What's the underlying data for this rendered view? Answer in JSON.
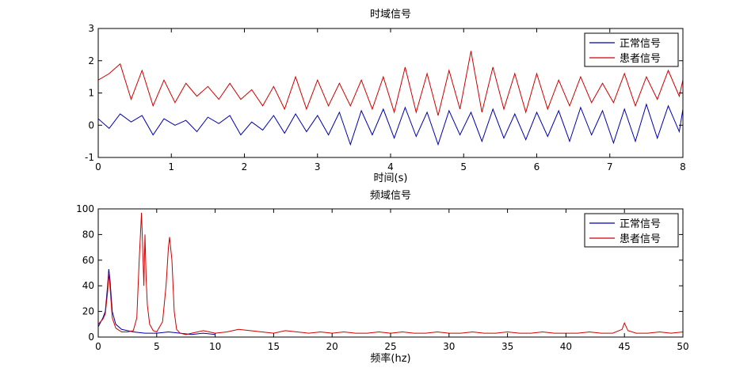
{
  "colors": {
    "normal": "#0000aa",
    "patient": "#cc0000",
    "axis": "#000000",
    "background": "#ffffff"
  },
  "chart_data": [
    {
      "type": "line",
      "title": "时域信号",
      "xlabel": "时间(s)",
      "ylabel": "",
      "xlim": [
        0,
        8
      ],
      "ylim": [
        -1,
        3
      ],
      "xticks": [
        0,
        1,
        2,
        3,
        4,
        5,
        6,
        7,
        8
      ],
      "yticks": [
        -1,
        0,
        1,
        2,
        3
      ],
      "grid": false,
      "legend_position": "top-right",
      "series": [
        {
          "name": "正常信号",
          "color": "#0000aa",
          "x": [
            0,
            0.15,
            0.3,
            0.45,
            0.6,
            0.75,
            0.9,
            1.05,
            1.2,
            1.35,
            1.5,
            1.65,
            1.8,
            1.95,
            2.1,
            2.25,
            2.4,
            2.55,
            2.7,
            2.85,
            3.0,
            3.15,
            3.3,
            3.45,
            3.6,
            3.75,
            3.9,
            4.05,
            4.2,
            4.35,
            4.5,
            4.65,
            4.8,
            4.95,
            5.1,
            5.25,
            5.4,
            5.55,
            5.7,
            5.85,
            6.0,
            6.15,
            6.3,
            6.45,
            6.6,
            6.75,
            6.9,
            7.05,
            7.2,
            7.35,
            7.5,
            7.65,
            7.8,
            7.95,
            8.0
          ],
          "values": [
            0.2,
            -0.1,
            0.35,
            0.1,
            0.3,
            -0.3,
            0.2,
            0.0,
            0.15,
            -0.2,
            0.25,
            0.05,
            0.3,
            -0.3,
            0.1,
            -0.15,
            0.3,
            -0.25,
            0.35,
            -0.2,
            0.3,
            -0.3,
            0.4,
            -0.6,
            0.45,
            -0.3,
            0.5,
            -0.4,
            0.55,
            -0.35,
            0.4,
            -0.6,
            0.45,
            -0.3,
            0.4,
            -0.5,
            0.5,
            -0.4,
            0.35,
            -0.45,
            0.4,
            -0.35,
            0.45,
            -0.5,
            0.55,
            -0.3,
            0.45,
            -0.55,
            0.5,
            -0.5,
            0.65,
            -0.4,
            0.6,
            -0.2,
            0.5
          ]
        },
        {
          "name": "患者信号",
          "color": "#cc0000",
          "x": [
            0,
            0.15,
            0.3,
            0.45,
            0.6,
            0.75,
            0.9,
            1.05,
            1.2,
            1.35,
            1.5,
            1.65,
            1.8,
            1.95,
            2.1,
            2.25,
            2.4,
            2.55,
            2.7,
            2.85,
            3.0,
            3.15,
            3.3,
            3.45,
            3.6,
            3.75,
            3.9,
            4.05,
            4.2,
            4.35,
            4.5,
            4.65,
            4.8,
            4.95,
            5.1,
            5.25,
            5.4,
            5.55,
            5.7,
            5.85,
            6.0,
            6.15,
            6.3,
            6.45,
            6.6,
            6.75,
            6.9,
            7.05,
            7.2,
            7.35,
            7.5,
            7.65,
            7.8,
            7.95,
            8.0
          ],
          "values": [
            1.4,
            1.6,
            1.9,
            0.8,
            1.7,
            0.6,
            1.4,
            0.7,
            1.3,
            0.9,
            1.2,
            0.8,
            1.3,
            0.8,
            1.1,
            0.6,
            1.2,
            0.5,
            1.5,
            0.5,
            1.4,
            0.6,
            1.3,
            0.6,
            1.4,
            0.5,
            1.5,
            0.4,
            1.8,
            0.4,
            1.6,
            0.3,
            1.7,
            0.5,
            2.3,
            0.4,
            1.8,
            0.5,
            1.6,
            0.4,
            1.6,
            0.5,
            1.4,
            0.6,
            1.5,
            0.7,
            1.3,
            0.7,
            1.6,
            0.6,
            1.5,
            0.8,
            1.7,
            0.9,
            1.4
          ]
        }
      ]
    },
    {
      "type": "line",
      "title": "频域信号",
      "xlabel": "频率(hz)",
      "ylabel": "",
      "xlim": [
        0,
        50
      ],
      "ylim": [
        0,
        100
      ],
      "xticks": [
        0,
        5,
        10,
        15,
        20,
        25,
        30,
        35,
        40,
        45,
        50
      ],
      "yticks": [
        0,
        20,
        40,
        60,
        80,
        100
      ],
      "grid": false,
      "legend_position": "top-right",
      "series": [
        {
          "name": "正常信号",
          "color": "#0000aa",
          "x": [
            0,
            0.4,
            0.6,
            0.8,
            0.9,
            1.0,
            1.2,
            1.5,
            2,
            3,
            4,
            5,
            6,
            7,
            8,
            9,
            10
          ],
          "values": [
            8,
            15,
            20,
            40,
            53,
            45,
            20,
            10,
            6,
            4,
            3,
            3,
            4,
            3,
            2,
            3,
            2
          ]
        },
        {
          "name": "患者信号",
          "color": "#cc0000",
          "x": [
            0,
            0.4,
            0.6,
            0.8,
            0.9,
            1.0,
            1.2,
            1.5,
            2,
            2.5,
            3.0,
            3.3,
            3.5,
            3.7,
            3.8,
            3.9,
            4.0,
            4.1,
            4.2,
            4.4,
            4.7,
            5.0,
            5.5,
            5.8,
            6.0,
            6.1,
            6.3,
            6.5,
            6.7,
            7.0,
            7.5,
            8,
            9,
            10,
            11,
            12,
            13,
            14,
            15,
            16,
            17,
            18,
            19,
            20,
            21,
            22,
            23,
            24,
            25,
            26,
            27,
            28,
            29,
            30,
            31,
            32,
            33,
            34,
            35,
            36,
            37,
            38,
            39,
            40,
            41,
            42,
            43,
            44,
            44.8,
            45.0,
            45.3,
            46,
            47,
            48,
            49,
            50
          ],
          "values": [
            10,
            14,
            18,
            35,
            50,
            40,
            15,
            7,
            4,
            4,
            5,
            15,
            60,
            97,
            70,
            40,
            80,
            45,
            25,
            10,
            5,
            4,
            12,
            40,
            70,
            78,
            60,
            20,
            6,
            3,
            2,
            3,
            5,
            3,
            4,
            6,
            5,
            4,
            3,
            5,
            4,
            3,
            4,
            3,
            4,
            3,
            3,
            4,
            3,
            4,
            3,
            3,
            4,
            3,
            3,
            4,
            3,
            3,
            4,
            3,
            3,
            4,
            3,
            3,
            3,
            4,
            3,
            3,
            6,
            11,
            5,
            3,
            3,
            4,
            3,
            4
          ]
        }
      ]
    }
  ]
}
